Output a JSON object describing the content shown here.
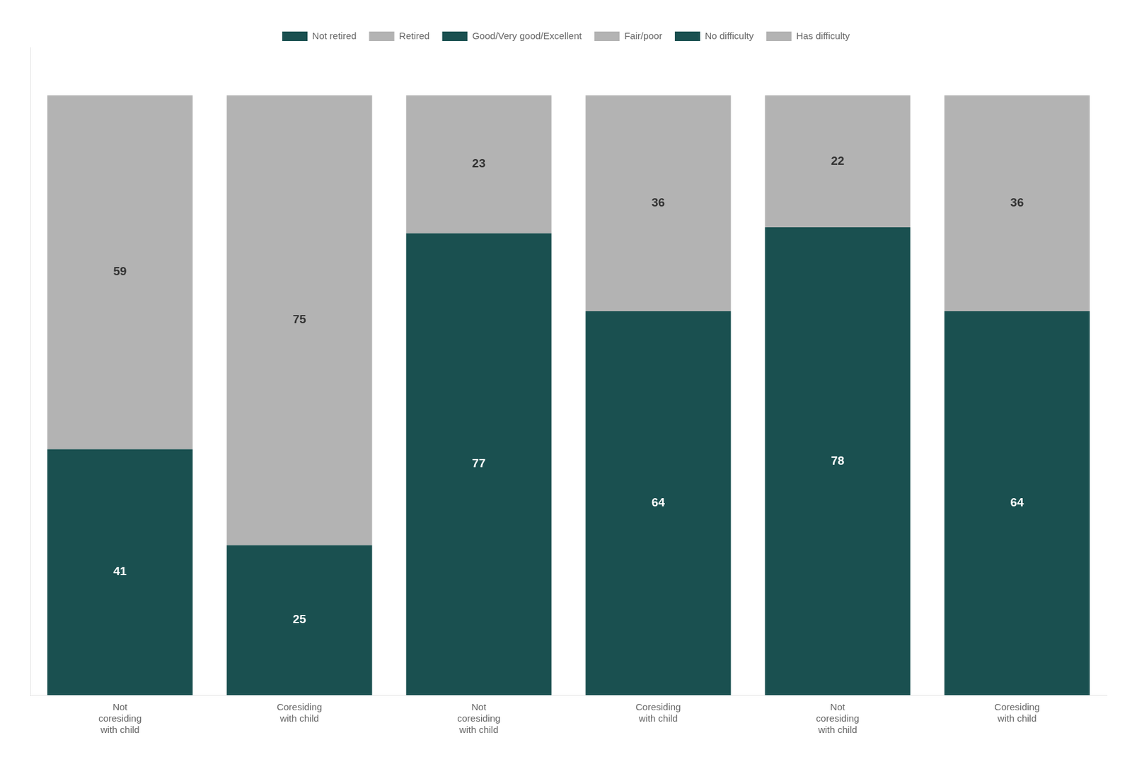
{
  "chart_data": {
    "type": "bar",
    "categories": [
      "Not\ncoresiding\nwith child",
      "Coresiding\nwith child",
      "Not\ncoresiding\nwith child",
      "Coresiding\nwith child",
      "Not\ncoresiding\nwith child",
      "Coresiding\nwith child"
    ],
    "series": [
      {
        "name": "Not retired",
        "color": "#1a5050",
        "values": [
          41,
          25,
          null,
          null,
          null,
          null
        ]
      },
      {
        "name": "Retired",
        "color": "#b3b3b3",
        "values": [
          59,
          75,
          null,
          null,
          null,
          null
        ]
      },
      {
        "name": "Good/Very good/Excellent",
        "color": "#1a5050",
        "values": [
          null,
          null,
          77,
          64,
          null,
          null
        ]
      },
      {
        "name": "Fair/poor",
        "color": "#b3b3b3",
        "values": [
          null,
          null,
          23,
          36,
          null,
          null
        ]
      },
      {
        "name": "No difficulty",
        "color": "#1a5050",
        "values": [
          null,
          null,
          null,
          null,
          78,
          64
        ]
      },
      {
        "name": "Has difficulty",
        "color": "#b3b3b3",
        "values": [
          null,
          null,
          null,
          null,
          22,
          36
        ]
      }
    ],
    "stacked": true,
    "data_labels": true,
    "ylim": [
      0,
      108
    ],
    "tick_labels": "x",
    "grid": false,
    "legend": "top"
  }
}
